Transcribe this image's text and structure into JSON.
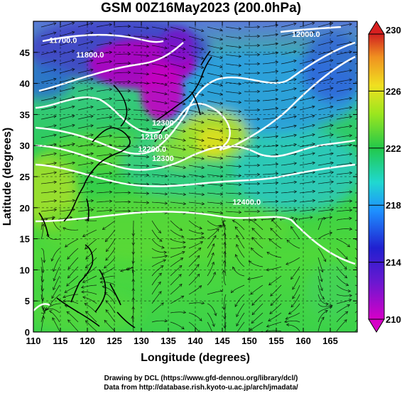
{
  "title": "GSM 00Z16May2023 (200.0hPa)",
  "x_axis": {
    "label": "Longitude (degrees)",
    "range": [
      110,
      170
    ],
    "ticks": [
      110,
      115,
      120,
      125,
      130,
      135,
      140,
      145,
      150,
      155,
      160,
      165
    ]
  },
  "y_axis": {
    "label": "Latitude  (degrees)",
    "range": [
      0,
      50
    ],
    "ticks": [
      0,
      5,
      10,
      15,
      20,
      25,
      30,
      35,
      40,
      45
    ]
  },
  "colorbar": {
    "min": 210,
    "max": 230,
    "labels": [
      210,
      214,
      218,
      222,
      226,
      230
    ],
    "colors": [
      "#d600c8",
      "#2020d0",
      "#1e90ff",
      "#20d8d0",
      "#22c84a",
      "#9be61e",
      "#f0e020",
      "#f09020",
      "#d02020"
    ]
  },
  "contour_labels": [
    {
      "text": "11700.0",
      "lon": 115.5,
      "lat": 46.5
    },
    {
      "text": "11800.0",
      "lon": 120.5,
      "lat": 44.2
    },
    {
      "text": "12000.0",
      "lon": 160.5,
      "lat": 47.5
    },
    {
      "text": "12300",
      "lon": 134,
      "lat": 33.2
    },
    {
      "text": "12100.0",
      "lon": 132.5,
      "lat": 31
    },
    {
      "text": "12200.0",
      "lon": 132,
      "lat": 29
    },
    {
      "text": "12300",
      "lon": 134,
      "lat": 27.5
    },
    {
      "text": "12400.0",
      "lon": 149.5,
      "lat": 20.5
    }
  ],
  "credits": {
    "line1": "Drawing by DCL (https://www.gfd-dennou.org/library/dcl/)",
    "line2": "Data from http://database.rish.kyoto-u.ac.jp/arch/jmadata/"
  }
}
